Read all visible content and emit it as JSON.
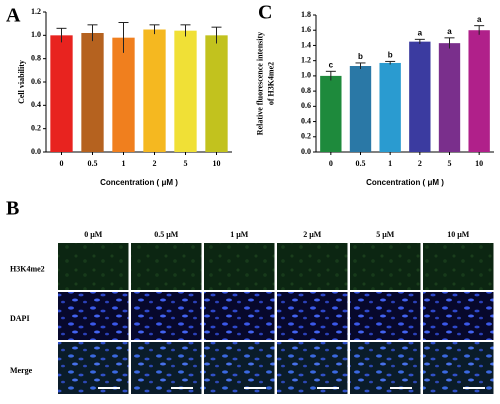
{
  "panels": [
    "A",
    "B",
    "C"
  ],
  "chart_data": [
    {
      "type": "bar",
      "ylabel": [
        "Cell viability"
      ],
      "xlabel": "Concentration ( μM )",
      "categories": [
        "0",
        "0.5",
        "1",
        "2",
        "5",
        "10"
      ],
      "values": [
        1.0,
        1.02,
        0.98,
        1.05,
        1.04,
        1.0
      ],
      "errors": [
        0.06,
        0.07,
        0.13,
        0.04,
        0.05,
        0.07
      ],
      "colors": [
        "#e8231f",
        "#b5621f",
        "#f07f1e",
        "#f5b820",
        "#f0e036",
        "#c2c21e"
      ],
      "ylim": [
        0,
        1.2
      ],
      "yticks": [
        {
          "value": 0,
          "label": "0.0"
        },
        0.2,
        0.4,
        0.6,
        0.8,
        {
          "value": 1,
          "label": "1.0"
        },
        1.2
      ]
    },
    {
      "type": "bar",
      "ylabel": [
        "Relative fluorescence intensity",
        "of H3K4me2"
      ],
      "xlabel": "Concentration ( μM )",
      "categories": [
        "0",
        "0.5",
        "1",
        "2",
        "5",
        "10"
      ],
      "values": [
        1.0,
        1.13,
        1.17,
        1.45,
        1.43,
        1.6
      ],
      "errors": [
        0.06,
        0.04,
        0.02,
        0.03,
        0.07,
        0.06
      ],
      "annotations": [
        "c",
        "b",
        "b",
        "a",
        "a",
        "a"
      ],
      "colors": [
        "#1e8a3c",
        "#2a78a6",
        "#2a9bd0",
        "#3b3ba0",
        "#7a2f8c",
        "#b0208a"
      ],
      "ylim": [
        0,
        1.8
      ],
      "yticks": [
        {
          "value": 0,
          "label": "0.0"
        },
        0.2,
        0.4,
        0.6,
        0.8,
        {
          "value": 1,
          "label": "1.0"
        },
        1.2,
        1.4,
        1.6,
        1.8
      ]
    }
  ],
  "micrograph": {
    "columns": [
      "0 μM",
      "0.5 μM",
      "1 μM",
      "2 μM",
      "5 μM",
      "10 μM"
    ],
    "rows": [
      "H3K4me2",
      "DAPI",
      "Merge"
    ]
  }
}
